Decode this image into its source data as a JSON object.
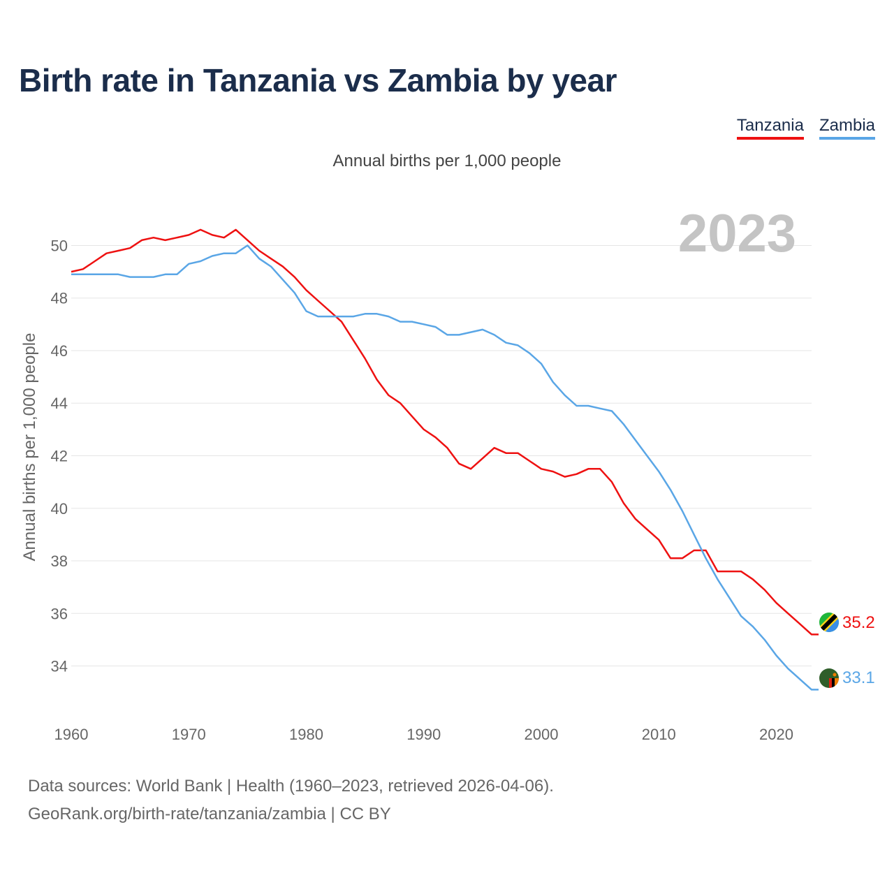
{
  "title": "Birth rate in Tanzania vs Zambia by year",
  "subtitle": "Annual births per 1,000 people",
  "year_label": "2023",
  "legend": [
    {
      "name": "Tanzania",
      "color": "#ee1111"
    },
    {
      "name": "Zambia",
      "color": "#5aa6e6"
    }
  ],
  "footer": {
    "line1": "Data sources: World Bank | Health (1960–2023, retrieved 2026-04-06).",
    "line2": "GeoRank.org/birth-rate/tanzania/zambia | CC BY"
  },
  "chart_data": {
    "type": "line",
    "title": "Birth rate in Tanzania vs Zambia by year",
    "xlabel": "",
    "ylabel": "Annual births per 1,000 people",
    "xlim": [
      1960,
      2023
    ],
    "ylim": [
      32.5,
      51.5
    ],
    "xticks": [
      1960,
      1970,
      1980,
      1990,
      2000,
      2010,
      2020
    ],
    "yticks": [
      34,
      36,
      38,
      40,
      42,
      44,
      46,
      48,
      50
    ],
    "grid": true,
    "legend_position": "top-right",
    "x": [
      1960,
      1961,
      1962,
      1963,
      1964,
      1965,
      1966,
      1967,
      1968,
      1969,
      1970,
      1971,
      1972,
      1973,
      1974,
      1975,
      1976,
      1977,
      1978,
      1979,
      1980,
      1981,
      1982,
      1983,
      1984,
      1985,
      1986,
      1987,
      1988,
      1989,
      1990,
      1991,
      1992,
      1993,
      1994,
      1995,
      1996,
      1997,
      1998,
      1999,
      2000,
      2001,
      2002,
      2003,
      2004,
      2005,
      2006,
      2007,
      2008,
      2009,
      2010,
      2011,
      2012,
      2013,
      2014,
      2015,
      2016,
      2017,
      2018,
      2019,
      2020,
      2021,
      2022,
      2023
    ],
    "series": [
      {
        "name": "Tanzania",
        "color": "#ee1111",
        "end_label": "35.2",
        "values": [
          49.0,
          49.1,
          49.4,
          49.7,
          49.8,
          49.9,
          50.2,
          50.3,
          50.2,
          50.3,
          50.4,
          50.6,
          50.4,
          50.3,
          50.6,
          50.2,
          49.8,
          49.5,
          49.2,
          48.8,
          48.3,
          47.9,
          47.5,
          47.1,
          46.4,
          45.7,
          44.9,
          44.3,
          44.0,
          43.5,
          43.0,
          42.7,
          42.3,
          41.7,
          41.5,
          41.9,
          42.3,
          42.1,
          42.1,
          41.8,
          41.5,
          41.4,
          41.2,
          41.3,
          41.5,
          41.5,
          41.0,
          40.2,
          39.6,
          39.2,
          38.8,
          38.1,
          38.1,
          38.4,
          38.4,
          37.6,
          37.6,
          37.6,
          37.3,
          36.9,
          36.4,
          36.0,
          35.6,
          35.2
        ]
      },
      {
        "name": "Zambia",
        "color": "#5aa6e6",
        "end_label": "33.1",
        "values": [
          48.9,
          48.9,
          48.9,
          48.9,
          48.9,
          48.8,
          48.8,
          48.8,
          48.9,
          48.9,
          49.3,
          49.4,
          49.6,
          49.7,
          49.7,
          50.0,
          49.5,
          49.2,
          48.7,
          48.2,
          47.5,
          47.3,
          47.3,
          47.3,
          47.3,
          47.4,
          47.4,
          47.3,
          47.1,
          47.1,
          47.0,
          46.9,
          46.6,
          46.6,
          46.7,
          46.8,
          46.6,
          46.3,
          46.2,
          45.9,
          45.5,
          44.8,
          44.3,
          43.9,
          43.9,
          43.8,
          43.7,
          43.2,
          42.6,
          42.0,
          41.4,
          40.7,
          39.9,
          39.0,
          38.1,
          37.3,
          36.6,
          35.9,
          35.5,
          35.0,
          34.4,
          33.9,
          33.5,
          33.1
        ]
      }
    ]
  }
}
